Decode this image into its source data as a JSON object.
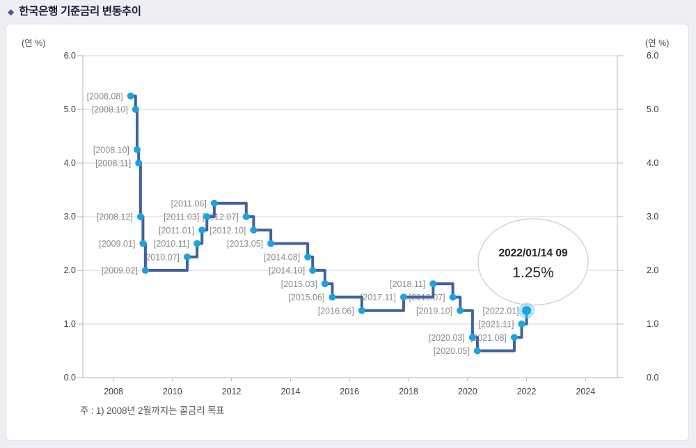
{
  "page": {
    "title": "한국은행 기준금리 변동추이",
    "title_bullet": "◆"
  },
  "chart_data": {
    "type": "line",
    "subtype": "step",
    "title": "한국은행 기준금리 변동추이",
    "y_unit_label_left": "(연 %)",
    "y_unit_label_right": "(연 %)",
    "ylim": [
      0.0,
      6.0
    ],
    "ytick_labels": [
      "6.0",
      "5.0",
      "4.0",
      "3.0",
      "2.0",
      "1.0",
      "0.0"
    ],
    "ytick_values": [
      6,
      5,
      4,
      3,
      2,
      1,
      0
    ],
    "xtick_labels": [
      "2008",
      "2010",
      "2012",
      "2014",
      "2016",
      "2018",
      "2020",
      "2022",
      "2024"
    ],
    "xtick_values": [
      2008,
      2010,
      2012,
      2014,
      2016,
      2018,
      2020,
      2022,
      2024
    ],
    "grid": "horizontal",
    "legend": "none",
    "note": "주 : 1) 2008년 2월까지는 콜금리 목표",
    "annotation": {
      "line1": "2022/01/14 09",
      "line2": "1.25%"
    },
    "points": [
      {
        "label": "[2008.08]",
        "date": "2008.08",
        "rate": 5.25
      },
      {
        "label": "[2008.10]",
        "date": "2008.10",
        "rate": 5.0
      },
      {
        "label": "[2008.10]",
        "date": "2008.10",
        "rate": 4.25
      },
      {
        "label": "[2008.11]",
        "date": "2008.11",
        "rate": 4.0
      },
      {
        "label": "[2008.12]",
        "date": "2008.12",
        "rate": 3.0
      },
      {
        "label": "[2009.01]",
        "date": "2009.01",
        "rate": 2.5
      },
      {
        "label": "[2009.02]",
        "date": "2009.02",
        "rate": 2.0
      },
      {
        "label": "[2010.07]",
        "date": "2010.07",
        "rate": 2.25
      },
      {
        "label": "[2010.11]",
        "date": "2010.11",
        "rate": 2.5
      },
      {
        "label": "[2011.01]",
        "date": "2011.01",
        "rate": 2.75
      },
      {
        "label": "[2011.03]",
        "date": "2011.03",
        "rate": 3.0
      },
      {
        "label": "[2011.06]",
        "date": "2011.06",
        "rate": 3.25
      },
      {
        "label": "[2012.07]",
        "date": "2012.07",
        "rate": 3.0
      },
      {
        "label": "[2012.10]",
        "date": "2012.10",
        "rate": 2.75
      },
      {
        "label": "[2013.05]",
        "date": "2013.05",
        "rate": 2.5
      },
      {
        "label": "[2014.08]",
        "date": "2014.08",
        "rate": 2.25
      },
      {
        "label": "[2014.10]",
        "date": "2014.10",
        "rate": 2.0
      },
      {
        "label": "[2015.03]",
        "date": "2015.03",
        "rate": 1.75
      },
      {
        "label": "[2015.06]",
        "date": "2015.06",
        "rate": 1.5
      },
      {
        "label": "[2016.06]",
        "date": "2016.06",
        "rate": 1.25
      },
      {
        "label": "[2017.11]",
        "date": "2017.11",
        "rate": 1.5
      },
      {
        "label": "[2018.11]",
        "date": "2018.11",
        "rate": 1.75
      },
      {
        "label": "[2019.07]",
        "date": "2019.07",
        "rate": 1.5
      },
      {
        "label": "[2019.10]",
        "date": "2019.10",
        "rate": 1.25
      },
      {
        "label": "[2020.03]",
        "date": "2020.03",
        "rate": 0.75
      },
      {
        "label": "[2020.05]",
        "date": "2020.05",
        "rate": 0.5
      },
      {
        "label": "[2021.08]",
        "date": "2021.08",
        "rate": 0.75
      },
      {
        "label": "[2021.11]",
        "date": "2021.11",
        "rate": 1.0
      },
      {
        "label": "[2022.01]",
        "date": "2022.01",
        "rate": 1.25,
        "highlight": true
      }
    ],
    "colors": {
      "line": "#41619f",
      "marker": "#1aa3e0",
      "marker_halo": "#74cdf2",
      "grid": "#d4d4d4",
      "axis": "#b5b5b5",
      "point_label": "#8a8a8a",
      "tick_label": "#3f3f3f",
      "annotation_border": "#c9ced6",
      "annotation_fill": "#ffffff",
      "annotation_text": "#222222",
      "note": "#555555",
      "title": "#161f38",
      "bullet": "#4c57a5"
    }
  }
}
